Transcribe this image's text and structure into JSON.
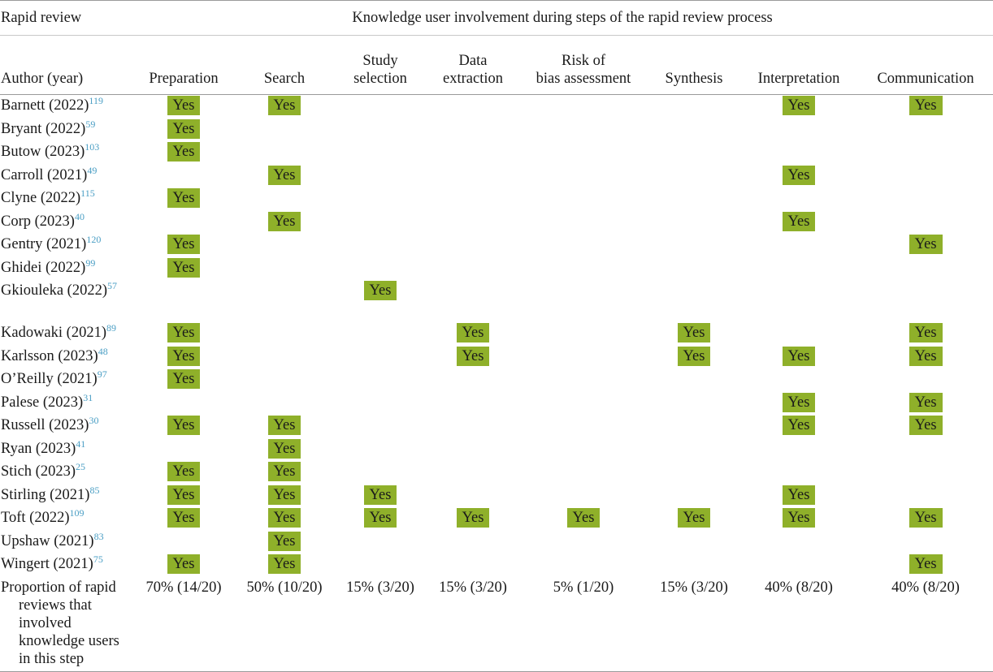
{
  "table": {
    "header_left": "Rapid review",
    "header_span": "Knowledge user involvement during steps of the rapid review process",
    "columns": [
      "Author (year)",
      "Preparation",
      "Search",
      "Study\nselection",
      "Data\nextraction",
      "Risk of\nbias assessment",
      "Synthesis",
      "Interpretation",
      "Communication"
    ],
    "yes_label": "Yes",
    "rows": [
      {
        "author": "Barnett (2022)",
        "ref": "119",
        "flags": [
          1,
          1,
          0,
          0,
          0,
          0,
          1,
          1
        ]
      },
      {
        "author": "Bryant (2022)",
        "ref": "59",
        "flags": [
          1,
          0,
          0,
          0,
          0,
          0,
          0,
          0
        ]
      },
      {
        "author": "Butow (2023)",
        "ref": "103",
        "flags": [
          1,
          0,
          0,
          0,
          0,
          0,
          0,
          0
        ]
      },
      {
        "author": "Carroll (2021)",
        "ref": "49",
        "flags": [
          0,
          1,
          0,
          0,
          0,
          0,
          1,
          0
        ]
      },
      {
        "author": "Clyne (2022)",
        "ref": "115",
        "flags": [
          1,
          0,
          0,
          0,
          0,
          0,
          0,
          0
        ]
      },
      {
        "author": "Corp (2023)",
        "ref": "40",
        "flags": [
          0,
          1,
          0,
          0,
          0,
          0,
          1,
          0
        ]
      },
      {
        "author": "Gentry (2021)",
        "ref": "120",
        "flags": [
          1,
          0,
          0,
          0,
          0,
          0,
          0,
          1
        ]
      },
      {
        "author": "Ghidei (2022)",
        "ref": "99",
        "flags": [
          1,
          0,
          0,
          0,
          0,
          0,
          0,
          0
        ]
      },
      {
        "author": "Gkiouleka (2022)",
        "ref": "57",
        "flags": [
          0,
          0,
          1,
          0,
          0,
          0,
          0,
          0
        ],
        "tall": true
      },
      {
        "author": "Kadowaki (2021)",
        "ref": "89",
        "flags": [
          1,
          0,
          0,
          1,
          0,
          1,
          0,
          1
        ]
      },
      {
        "author": "Karlsson (2023)",
        "ref": "48",
        "flags": [
          1,
          0,
          0,
          1,
          0,
          1,
          1,
          1
        ]
      },
      {
        "author": "O’Reilly (2021)",
        "ref": "97",
        "flags": [
          1,
          0,
          0,
          0,
          0,
          0,
          0,
          0
        ]
      },
      {
        "author": "Palese (2023)",
        "ref": "31",
        "flags": [
          0,
          0,
          0,
          0,
          0,
          0,
          1,
          1
        ]
      },
      {
        "author": "Russell (2023)",
        "ref": "30",
        "flags": [
          1,
          1,
          0,
          0,
          0,
          0,
          1,
          1
        ]
      },
      {
        "author": "Ryan (2023)",
        "ref": "41",
        "flags": [
          0,
          1,
          0,
          0,
          0,
          0,
          0,
          0
        ]
      },
      {
        "author": "Stich (2023)",
        "ref": "25",
        "flags": [
          1,
          1,
          0,
          0,
          0,
          0,
          0,
          0
        ]
      },
      {
        "author": "Stirling (2021)",
        "ref": "85",
        "flags": [
          1,
          1,
          1,
          0,
          0,
          0,
          1,
          0
        ]
      },
      {
        "author": "Toft (2022)",
        "ref": "109",
        "flags": [
          1,
          1,
          1,
          1,
          1,
          1,
          1,
          1
        ]
      },
      {
        "author": "Upshaw (2021)",
        "ref": "83",
        "flags": [
          0,
          1,
          0,
          0,
          0,
          0,
          0,
          0
        ]
      },
      {
        "author": "Wingert (2021)",
        "ref": "75",
        "flags": [
          1,
          1,
          0,
          0,
          0,
          0,
          0,
          1
        ]
      }
    ],
    "summary": {
      "label": "Proportion of rapid reviews that involved knowledge users in this step",
      "values": [
        "70% (14/20)",
        "50% (10/20)",
        "15% (3/20)",
        "15% (3/20)",
        "5% (1/20)",
        "15% (3/20)",
        "40% (8/20)",
        "40% (8/20)"
      ]
    },
    "colors": {
      "yes_bg": "#8fb02a",
      "ref_text": "#4a9ec4",
      "rule": "#9a9a9a"
    }
  }
}
